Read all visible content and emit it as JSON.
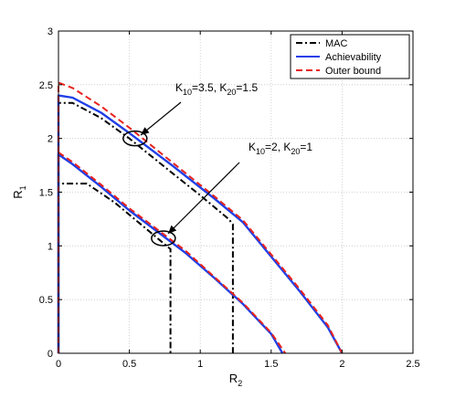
{
  "chart_data": {
    "type": "line",
    "xlabel": "R",
    "xlabel_sub": "2",
    "ylabel": "R",
    "ylabel_sub": "1",
    "xlim": [
      0,
      2.5
    ],
    "ylim": [
      0,
      3
    ],
    "xticks": [
      "0",
      "0.5",
      "1",
      "1.5",
      "2",
      "2.5"
    ],
    "yticks": [
      "0",
      "0.5",
      "1",
      "1.5",
      "2",
      "2.5",
      "3"
    ],
    "grid": true,
    "legend_position": "top-right",
    "legend": [
      {
        "label": "MAC",
        "color": "#000000",
        "style": "dashdot"
      },
      {
        "label": "Achievability",
        "color": "#1f3fe6",
        "style": "solid"
      },
      {
        "label": "Outer bound",
        "color": "#e8231f",
        "style": "dashed"
      }
    ],
    "annotations": [
      {
        "parts": [
          "K",
          "10",
          "=3.5, K",
          "20",
          "=1.5"
        ],
        "ellipse_center": [
          0.54,
          2.0
        ]
      },
      {
        "parts": [
          "K",
          "10",
          "=2, K",
          "20",
          "=1"
        ],
        "ellipse_center": [
          0.74,
          1.07
        ]
      }
    ],
    "series": [
      {
        "legend": "MAC",
        "group": "K10=3.5, K20=1.5",
        "color": "#000000",
        "style": "dashdot",
        "x": [
          0,
          0,
          0.1,
          0.3,
          0.5,
          0.8,
          1.0,
          1.2,
          1.23,
          1.23
        ],
        "y": [
          0,
          2.33,
          2.33,
          2.19,
          2.0,
          1.68,
          1.47,
          1.25,
          1.2,
          0
        ]
      },
      {
        "legend": "MAC",
        "group": "K10=2, K20=1",
        "color": "#000000",
        "style": "dashdot",
        "x": [
          0,
          0,
          0.2,
          0.4,
          0.6,
          0.79,
          0.79
        ],
        "y": [
          0,
          1.58,
          1.58,
          1.4,
          1.18,
          0.97,
          0
        ]
      },
      {
        "legend": "Achievability",
        "group": "K10=3.5, K20=1.5",
        "color": "#1f3fe6",
        "style": "solid",
        "x": [
          0,
          0,
          0.1,
          0.3,
          0.5,
          0.8,
          1.1,
          1.3,
          1.5,
          1.7,
          1.9,
          2.0
        ],
        "y": [
          0,
          2.4,
          2.38,
          2.24,
          2.05,
          1.75,
          1.44,
          1.22,
          0.9,
          0.58,
          0.24,
          0
        ]
      },
      {
        "legend": "Achievability",
        "group": "K10=2, K20=1",
        "color": "#1f3fe6",
        "style": "solid",
        "x": [
          0,
          0,
          0.1,
          0.3,
          0.5,
          0.7,
          0.9,
          1.1,
          1.3,
          1.5,
          1.58
        ],
        "y": [
          0,
          1.85,
          1.76,
          1.55,
          1.33,
          1.13,
          0.93,
          0.7,
          0.46,
          0.18,
          0
        ]
      },
      {
        "legend": "Outer bound",
        "group": "K10=3.5, K20=1.5",
        "color": "#e8231f",
        "style": "dashed",
        "x": [
          0,
          0,
          0.1,
          0.3,
          0.5,
          0.8,
          1.1,
          1.3,
          1.5,
          1.7,
          1.9,
          2.0
        ],
        "y": [
          0,
          2.52,
          2.47,
          2.3,
          2.1,
          1.78,
          1.46,
          1.24,
          0.92,
          0.6,
          0.26,
          0
        ]
      },
      {
        "legend": "Outer bound",
        "group": "K10=2, K20=1",
        "color": "#e8231f",
        "style": "dashed",
        "x": [
          0,
          0,
          0.1,
          0.3,
          0.5,
          0.7,
          0.9,
          1.1,
          1.3,
          1.5,
          1.6
        ],
        "y": [
          0,
          1.87,
          1.78,
          1.57,
          1.35,
          1.15,
          0.95,
          0.71,
          0.47,
          0.19,
          0
        ]
      }
    ]
  }
}
